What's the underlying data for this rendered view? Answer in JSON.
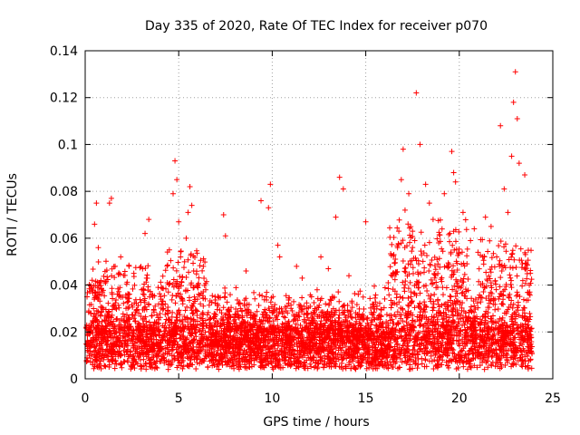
{
  "chart_data": {
    "type": "scatter",
    "title": "Day 335 of 2020, Rate Of TEC Index for receiver p070",
    "xlabel": "GPS time / hours",
    "ylabel": "ROTI / TECUs",
    "xlim": [
      0,
      25
    ],
    "ylim": [
      0,
      0.14
    ],
    "xticks": [
      "0",
      "5",
      "10",
      "15",
      "20",
      "25"
    ],
    "yticks": [
      "0",
      "0.02",
      "0.04",
      "0.06",
      "0.08",
      "0.1",
      "0.12",
      "0.14"
    ],
    "grid": true,
    "marker": "plus",
    "color": "#ff0000",
    "series": [
      {
        "name": "ROTI",
        "x": [
          0.1,
          0.3,
          0.5,
          0.6,
          0.7,
          0.8,
          1.3,
          1.4,
          1.6,
          1.9,
          2.3,
          2.6,
          3.2,
          3.4,
          3.9,
          4.5,
          4.7,
          4.8,
          4.9,
          5.0,
          5.1,
          5.4,
          5.5,
          5.6,
          5.7,
          5.8,
          6.0,
          6.3,
          7.4,
          7.5,
          8.2,
          8.6,
          9.4,
          9.8,
          9.9,
          10.3,
          10.4,
          10.8,
          11.3,
          11.6,
          12.1,
          12.4,
          12.6,
          13.0,
          13.4,
          13.6,
          13.8,
          14.1,
          14.6,
          15.0,
          15.1,
          15.6,
          16.2,
          16.5,
          16.7,
          16.9,
          17.0,
          17.1,
          17.3,
          17.5,
          17.7,
          17.9,
          18.2,
          18.4,
          18.6,
          18.9,
          19.2,
          19.5,
          19.6,
          19.7,
          19.8,
          20.2,
          20.6,
          20.8,
          21.0,
          21.4,
          21.7,
          22.0,
          22.2,
          22.4,
          22.6,
          22.8,
          22.9,
          23.0,
          23.1,
          23.2,
          23.5,
          23.8
        ],
        "y": [
          0.035,
          0.028,
          0.066,
          0.075,
          0.056,
          0.041,
          0.075,
          0.077,
          0.048,
          0.052,
          0.033,
          0.045,
          0.062,
          0.068,
          0.039,
          0.055,
          0.079,
          0.093,
          0.085,
          0.067,
          0.052,
          0.06,
          0.071,
          0.082,
          0.074,
          0.046,
          0.034,
          0.025,
          0.07,
          0.061,
          0.032,
          0.046,
          0.076,
          0.073,
          0.083,
          0.057,
          0.052,
          0.031,
          0.048,
          0.043,
          0.035,
          0.038,
          0.052,
          0.047,
          0.069,
          0.086,
          0.081,
          0.044,
          0.036,
          0.067,
          0.026,
          0.031,
          0.041,
          0.053,
          0.056,
          0.085,
          0.098,
          0.072,
          0.079,
          0.063,
          0.122,
          0.1,
          0.083,
          0.075,
          0.068,
          0.058,
          0.079,
          0.062,
          0.097,
          0.088,
          0.084,
          0.071,
          0.059,
          0.064,
          0.054,
          0.069,
          0.065,
          0.052,
          0.108,
          0.081,
          0.071,
          0.095,
          0.118,
          0.131,
          0.111,
          0.092,
          0.087,
          0.045
        ]
      }
    ]
  }
}
